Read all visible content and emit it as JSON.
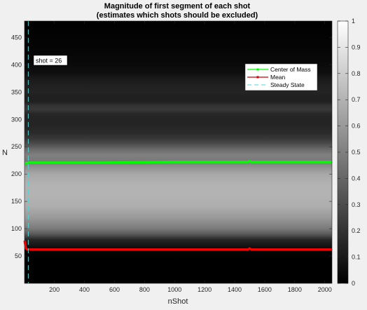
{
  "chart_data": {
    "type": "heatmap",
    "title": "Magnitude of first segment of each shot",
    "subtitle": "(estimates which shots should be excluded)",
    "xlabel": "nShot",
    "ylabel": "N",
    "xlim": [
      1,
      2048
    ],
    "ylim": [
      0,
      480
    ],
    "x_ticks": [
      200,
      400,
      600,
      800,
      1000,
      1200,
      1400,
      1600,
      1800,
      2000
    ],
    "y_ticks": [
      50,
      100,
      150,
      200,
      250,
      300,
      350,
      400,
      450
    ],
    "y_direction": "normal",
    "colormap": "gray",
    "colorbar": {
      "range": [
        0,
        1
      ],
      "ticks": [
        0,
        0.1,
        0.2,
        0.3,
        0.4,
        0.5,
        0.6,
        0.7,
        0.8,
        0.9,
        1
      ]
    },
    "image_profile": {
      "description_units": "N vs intensity",
      "N": [
        0,
        40,
        60,
        80,
        90,
        100,
        120,
        140,
        160,
        180,
        200,
        215,
        225,
        235,
        245,
        255,
        265,
        275,
        290,
        300,
        310,
        318,
        325,
        332,
        340,
        350,
        360,
        375,
        385,
        400,
        430,
        480
      ],
      "intensity": [
        0.0,
        0.0,
        0.02,
        0.15,
        0.35,
        0.48,
        0.6,
        0.68,
        0.7,
        0.7,
        0.66,
        0.55,
        0.48,
        0.5,
        0.42,
        0.3,
        0.22,
        0.17,
        0.14,
        0.14,
        0.15,
        0.22,
        0.2,
        0.13,
        0.12,
        0.14,
        0.13,
        0.1,
        0.06,
        0.04,
        0.02,
        0.0
      ]
    },
    "series": [
      {
        "name": "Center of Mass",
        "color": "#00ff00",
        "x": [
          1,
          5,
          10,
          20,
          30,
          100,
          500,
          1000,
          1490,
          1500,
          1510,
          2048
        ],
        "y": [
          219,
          219,
          220,
          220,
          221,
          221,
          221,
          222,
          222,
          224,
          222,
          222
        ]
      },
      {
        "name": "Mean",
        "color": "#ff0000",
        "x": [
          1,
          5,
          10,
          20,
          30,
          100,
          500,
          1000,
          1490,
          1500,
          1510,
          2048
        ],
        "y": [
          78,
          72,
          64,
          62,
          62,
          62,
          62,
          62,
          62,
          64,
          62,
          62
        ]
      },
      {
        "name": "Steady State",
        "color": "#4fd8d8",
        "style": "dashed",
        "x_value": 26
      }
    ],
    "legend": {
      "placement": "top-right",
      "entries": [
        "Center of Mass",
        "Mean",
        "Steady State"
      ]
    },
    "annotation": {
      "text": "shot = 26"
    }
  }
}
